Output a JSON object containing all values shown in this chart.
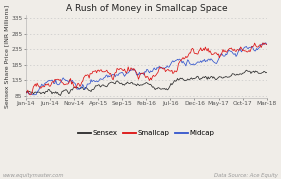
{
  "title": "A Rush of Money in Smallcap Space",
  "ylabel": "Sensex Share Price [INR Millions]",
  "x_tick_labels": [
    "Jan-14",
    "Jun-14",
    "Nov-14",
    "Apr-15",
    "Sep-15",
    "Feb-16",
    "Jul-16",
    "Dec-16",
    "May-17",
    "Oct-17",
    "Mar-18"
  ],
  "yticks": [
    85,
    135,
    185,
    235,
    285,
    335
  ],
  "ylim": [
    78,
    345
  ],
  "legend_labels": [
    "Sensex",
    "Smallcap",
    "Midcap"
  ],
  "line_colors": [
    "#2a2a2a",
    "#dd1111",
    "#3355cc"
  ],
  "background_color": "#f0ede8",
  "plot_bg_color": "#f0ede8",
  "grid_color": "#c8c8c8",
  "footer_left": "www.equitymaster.com",
  "footer_right": "Data Source: Ace Equity",
  "title_fontsize": 6.5,
  "axis_fontsize": 4.5,
  "tick_fontsize": 4.2,
  "legend_fontsize": 5,
  "footer_fontsize": 3.8
}
